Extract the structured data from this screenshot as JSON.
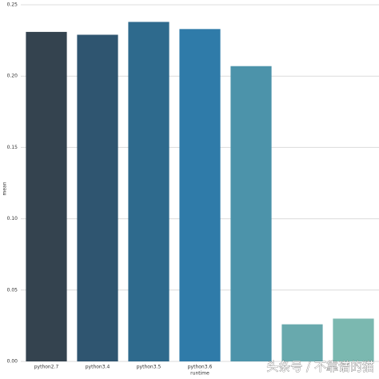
{
  "chart_data": {
    "type": "bar",
    "x_label": "runtime",
    "y_label": "mean",
    "categories": [
      "python2.7",
      "python3.4",
      "python3.5",
      "python3.6",
      null,
      null,
      null
    ],
    "values": [
      0.231,
      0.229,
      0.238,
      0.233,
      0.207,
      0.026,
      0.03
    ],
    "colors": [
      "#34434f",
      "#2f5570",
      "#2e6a8d",
      "#2f7ba9",
      "#4c93aa",
      "#68a9ad",
      "#7bb8b0"
    ],
    "ylim": [
      0,
      0.25
    ],
    "yticks": [
      {
        "value": 0,
        "label": "0.00"
      },
      0.05,
      {
        "value": 0.1,
        "label": "0.10"
      },
      0.15,
      {
        "value": 0.2,
        "label": "0.20"
      },
      0.25
    ],
    "grid": true,
    "watermark": "头条号 / 不靠谱的猫"
  }
}
